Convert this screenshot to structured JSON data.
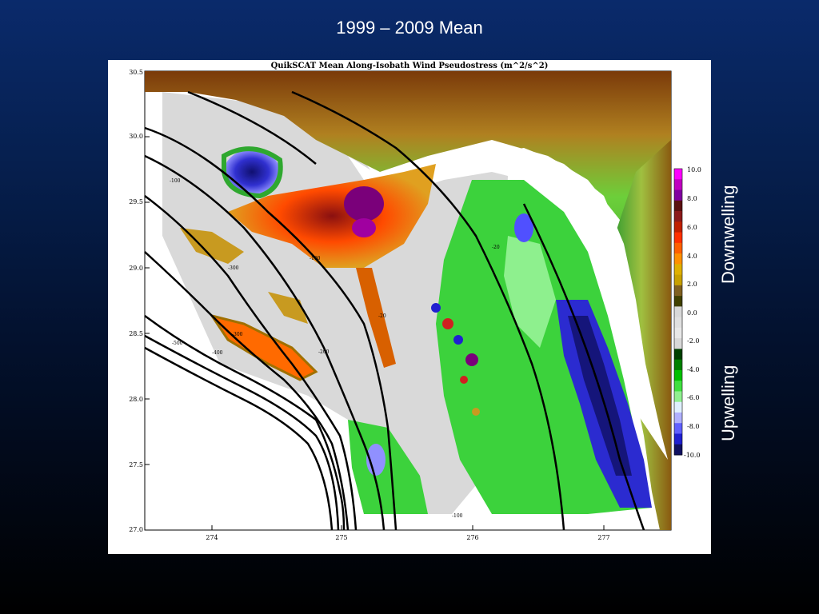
{
  "slide": {
    "title": "1999 – 2009 Mean",
    "label_upper": "Downwelling",
    "label_lower": "Upwelling"
  },
  "map": {
    "title": "QuikSCAT Mean Along-Isobath Wind Pseudostress (m^2/s^2)",
    "lat_ticks": [
      "30.5",
      "30.0",
      "29.5",
      "29.0",
      "28.5",
      "28.0",
      "27.5",
      "27.0"
    ],
    "lon_ticks": [
      "274",
      "275",
      "276",
      "277"
    ],
    "isobath_labels": [
      "-10",
      "-20",
      "-50",
      "-100",
      "-200",
      "-300",
      "-400",
      "-500"
    ],
    "colorbar": {
      "ticks": [
        "10.0",
        "8.0",
        "6.0",
        "4.0",
        "2.0",
        "0.0",
        "-2.0",
        "-4.0",
        "-6.0",
        "-8.0",
        "-10.0"
      ],
      "colors": [
        "#ff00ff",
        "#c000c0",
        "#8000a0",
        "#5a1010",
        "#8b1a1a",
        "#c02000",
        "#ff3000",
        "#ff6000",
        "#ff9000",
        "#e0b000",
        "#c8a000",
        "#806020",
        "#404000",
        "#d8d8d8",
        "#e0e0e0",
        "#e8e8e8",
        "#d8d8d8",
        "#004000",
        "#008000",
        "#00c000",
        "#40e040",
        "#90f090",
        "#e0f0ff",
        "#b0b0ff",
        "#6060ff",
        "#2020d0",
        "#101060"
      ]
    },
    "land_color": "#4fc04f",
    "shelf_color": "#d9d9d9",
    "downwelling_color": "#ff6a00",
    "upwelling_color": "#2b2bd0"
  }
}
